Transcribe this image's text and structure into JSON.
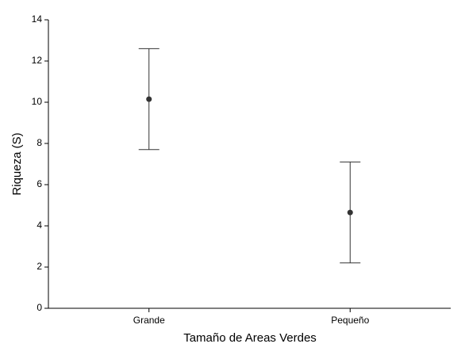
{
  "chart_data": {
    "type": "errorbar",
    "x_label": "Tamaño de Areas Verdes",
    "y_label": "Riqueza (S)",
    "categories": [
      "Grande",
      "Pequeño"
    ],
    "values": [
      10.15,
      4.65
    ],
    "errors": [
      2.45,
      2.45
    ],
    "color": "#333333",
    "ylim": [
      0,
      14
    ],
    "yticks": [
      0,
      2,
      4,
      6,
      8,
      10,
      12,
      14
    ],
    "grid": false
  }
}
